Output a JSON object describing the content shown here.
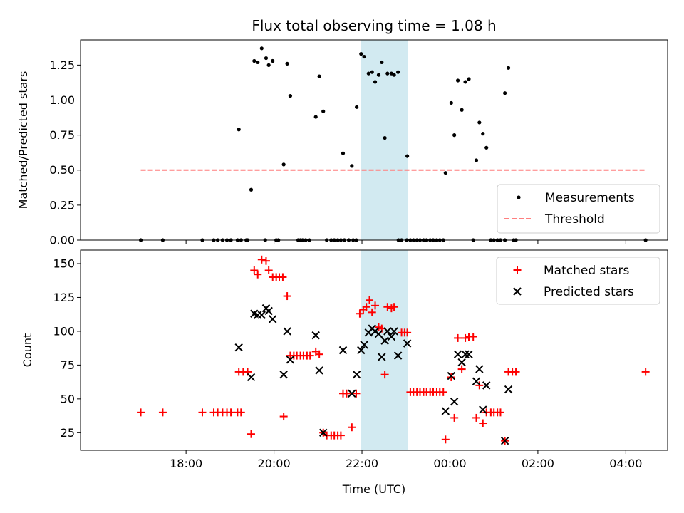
{
  "chart_data": [
    {
      "type": "scatter",
      "title": "Flux total observing time = 1.08 h",
      "xlabel": "",
      "ylabel": "Matched/Predicted stars",
      "x_unit": "hours UTC (relative to 00:00)",
      "xlim": [
        -8.4,
        4.95
      ],
      "ylim": [
        0.0,
        1.43
      ],
      "yticks": [
        0.0,
        0.25,
        0.5,
        0.75,
        1.0,
        1.25
      ],
      "ytick_labels": [
        "0.00",
        "0.25",
        "0.50",
        "0.75",
        "1.00",
        "1.25"
      ],
      "shaded_span": {
        "start": -2.02,
        "end": -0.95,
        "color": "#add8e6"
      },
      "legend_position": "lower-right",
      "series": [
        {
          "name": "Measurements",
          "color": "#000000",
          "marker": "dot",
          "points": [
            [
              -7.03,
              0.0
            ],
            [
              -6.53,
              0.0
            ],
            [
              -5.63,
              0.0
            ],
            [
              -5.37,
              0.0
            ],
            [
              -5.28,
              0.0
            ],
            [
              -5.17,
              0.0
            ],
            [
              -5.07,
              0.0
            ],
            [
              -4.98,
              0.0
            ],
            [
              -4.83,
              0.0
            ],
            [
              -4.75,
              0.0
            ],
            [
              -4.63,
              0.0
            ],
            [
              -4.6,
              0.0
            ],
            [
              -4.2,
              0.0
            ],
            [
              -3.95,
              0.0
            ],
            [
              -3.9,
              0.0
            ],
            [
              -3.45,
              0.0
            ],
            [
              -3.4,
              0.0
            ],
            [
              -3.35,
              0.0
            ],
            [
              -3.28,
              0.0
            ],
            [
              -3.2,
              0.0
            ],
            [
              -2.8,
              0.0
            ],
            [
              -2.7,
              0.0
            ],
            [
              -2.63,
              0.0
            ],
            [
              -2.55,
              0.0
            ],
            [
              -2.48,
              0.0
            ],
            [
              -2.4,
              0.0
            ],
            [
              -2.3,
              0.0
            ],
            [
              -2.2,
              0.0
            ],
            [
              -2.13,
              0.0
            ],
            [
              -1.17,
              0.0
            ],
            [
              -1.1,
              0.0
            ],
            [
              -0.98,
              0.0
            ],
            [
              -0.9,
              0.0
            ],
            [
              -0.83,
              0.0
            ],
            [
              -0.75,
              0.0
            ],
            [
              -0.68,
              0.0
            ],
            [
              -0.6,
              0.0
            ],
            [
              -0.53,
              0.0
            ],
            [
              -0.45,
              0.0
            ],
            [
              -0.38,
              0.0
            ],
            [
              -0.3,
              0.0
            ],
            [
              -0.23,
              0.0
            ],
            [
              -0.15,
              0.0
            ],
            [
              0.53,
              0.0
            ],
            [
              0.93,
              0.0
            ],
            [
              1.0,
              0.0
            ],
            [
              1.08,
              0.0
            ],
            [
              1.15,
              0.0
            ],
            [
              1.25,
              0.0
            ],
            [
              1.45,
              0.0
            ],
            [
              1.5,
              0.0
            ],
            [
              4.45,
              0.0
            ],
            [
              -4.8,
              0.79
            ],
            [
              -4.52,
              0.36
            ],
            [
              -4.45,
              1.28
            ],
            [
              -4.37,
              1.27
            ],
            [
              -4.28,
              1.37
            ],
            [
              -4.18,
              1.3
            ],
            [
              -4.12,
              1.25
            ],
            [
              -4.03,
              1.28
            ],
            [
              -3.78,
              0.54
            ],
            [
              -3.7,
              1.26
            ],
            [
              -3.63,
              1.03
            ],
            [
              -3.05,
              0.88
            ],
            [
              -2.97,
              1.17
            ],
            [
              -2.88,
              0.92
            ],
            [
              -2.43,
              0.62
            ],
            [
              -2.23,
              0.53
            ],
            [
              -2.12,
              0.95
            ],
            [
              -2.02,
              1.33
            ],
            [
              -1.95,
              1.31
            ],
            [
              -1.85,
              1.19
            ],
            [
              -1.77,
              1.2
            ],
            [
              -1.7,
              1.13
            ],
            [
              -1.62,
              1.18
            ],
            [
              -1.55,
              1.27
            ],
            [
              -1.48,
              0.73
            ],
            [
              -1.42,
              1.19
            ],
            [
              -1.33,
              1.19
            ],
            [
              -1.27,
              1.18
            ],
            [
              -1.18,
              1.2
            ],
            [
              -0.97,
              0.6
            ],
            [
              -0.1,
              0.48
            ],
            [
              0.03,
              0.98
            ],
            [
              0.1,
              0.75
            ],
            [
              0.18,
              1.14
            ],
            [
              0.27,
              0.93
            ],
            [
              0.35,
              1.13
            ],
            [
              0.43,
              1.15
            ],
            [
              0.6,
              0.57
            ],
            [
              0.67,
              0.84
            ],
            [
              0.75,
              0.76
            ],
            [
              0.83,
              0.66
            ],
            [
              1.25,
              1.05
            ],
            [
              1.33,
              1.23
            ]
          ]
        },
        {
          "name": "Threshold",
          "color": "#ff7f7f",
          "style": "dashed",
          "value": 0.5,
          "x_range": [
            -7.03,
            4.45
          ]
        }
      ]
    },
    {
      "type": "scatter",
      "title": "",
      "xlabel": "Time (UTC)",
      "ylabel": "Count",
      "x_unit": "hours UTC (relative to 00:00)",
      "xlim": [
        -8.4,
        4.95
      ],
      "ylim": [
        12,
        160
      ],
      "yticks": [
        25,
        50,
        75,
        100,
        125,
        150
      ],
      "ytick_labels": [
        "25",
        "50",
        "75",
        "100",
        "125",
        "150"
      ],
      "xticks": [
        -6,
        -4,
        -2,
        0,
        2,
        4
      ],
      "xtick_labels": [
        "18:00",
        "20:00",
        "22:00",
        "00:00",
        "02:00",
        "04:00"
      ],
      "shaded_span": {
        "start": -2.02,
        "end": -0.95,
        "color": "#add8e6"
      },
      "legend_position": "top-right",
      "series": [
        {
          "name": "Matched stars",
          "color": "#ff0000",
          "marker": "plus",
          "points": [
            [
              -7.03,
              40
            ],
            [
              -6.53,
              40
            ],
            [
              -5.63,
              40
            ],
            [
              -5.37,
              40
            ],
            [
              -5.28,
              40
            ],
            [
              -5.17,
              40
            ],
            [
              -5.07,
              40
            ],
            [
              -4.98,
              40
            ],
            [
              -4.83,
              40
            ],
            [
              -4.75,
              40
            ],
            [
              -4.8,
              70
            ],
            [
              -4.7,
              70
            ],
            [
              -4.6,
              70
            ],
            [
              -4.52,
              24
            ],
            [
              -4.45,
              145
            ],
            [
              -4.37,
              142
            ],
            [
              -4.28,
              153
            ],
            [
              -4.18,
              152
            ],
            [
              -4.12,
              145
            ],
            [
              -4.03,
              140
            ],
            [
              -3.95,
              140
            ],
            [
              -3.88,
              140
            ],
            [
              -3.8,
              140
            ],
            [
              -3.78,
              37
            ],
            [
              -3.7,
              126
            ],
            [
              -3.63,
              82
            ],
            [
              -3.55,
              82
            ],
            [
              -3.48,
              82
            ],
            [
              -3.4,
              82
            ],
            [
              -3.33,
              82
            ],
            [
              -3.25,
              82
            ],
            [
              -3.18,
              82
            ],
            [
              -3.05,
              85
            ],
            [
              -2.97,
              83
            ],
            [
              -2.88,
              25
            ],
            [
              -2.8,
              23
            ],
            [
              -2.7,
              23
            ],
            [
              -2.63,
              23
            ],
            [
              -2.55,
              23
            ],
            [
              -2.48,
              23
            ],
            [
              -2.43,
              54
            ],
            [
              -2.35,
              54
            ],
            [
              -2.23,
              29
            ],
            [
              -2.13,
              54
            ],
            [
              -2.05,
              113
            ],
            [
              -1.97,
              116
            ],
            [
              -1.9,
              118
            ],
            [
              -1.83,
              123
            ],
            [
              -1.77,
              114
            ],
            [
              -1.7,
              119
            ],
            [
              -1.62,
              103
            ],
            [
              -1.55,
              102
            ],
            [
              -1.48,
              68
            ],
            [
              -1.42,
              118
            ],
            [
              -1.33,
              117
            ],
            [
              -1.27,
              118
            ],
            [
              -1.1,
              99
            ],
            [
              -1.03,
              99
            ],
            [
              -0.97,
              99
            ],
            [
              -0.9,
              55
            ],
            [
              -0.83,
              55
            ],
            [
              -0.75,
              55
            ],
            [
              -0.68,
              55
            ],
            [
              -0.6,
              55
            ],
            [
              -0.53,
              55
            ],
            [
              -0.45,
              55
            ],
            [
              -0.38,
              55
            ],
            [
              -0.3,
              55
            ],
            [
              -0.23,
              55
            ],
            [
              -0.15,
              55
            ],
            [
              -0.1,
              20
            ],
            [
              0.03,
              66
            ],
            [
              0.1,
              36
            ],
            [
              0.18,
              95
            ],
            [
              0.27,
              72
            ],
            [
              0.35,
              95
            ],
            [
              0.43,
              96
            ],
            [
              0.53,
              96
            ],
            [
              0.6,
              36
            ],
            [
              0.67,
              60
            ],
            [
              0.75,
              32
            ],
            [
              0.83,
              40
            ],
            [
              0.93,
              40
            ],
            [
              1.0,
              40
            ],
            [
              1.08,
              40
            ],
            [
              1.15,
              40
            ],
            [
              1.25,
              19
            ],
            [
              1.33,
              70
            ],
            [
              1.42,
              70
            ],
            [
              1.5,
              70
            ],
            [
              4.45,
              70
            ]
          ]
        },
        {
          "name": "Predicted stars",
          "color": "#000000",
          "marker": "x",
          "points": [
            [
              -4.8,
              88
            ],
            [
              -4.52,
              66
            ],
            [
              -4.45,
              113
            ],
            [
              -4.37,
              112
            ],
            [
              -4.28,
              112
            ],
            [
              -4.18,
              117
            ],
            [
              -4.12,
              115
            ],
            [
              -4.03,
              109
            ],
            [
              -3.78,
              68
            ],
            [
              -3.7,
              100
            ],
            [
              -3.63,
              79
            ],
            [
              -3.05,
              97
            ],
            [
              -2.97,
              71
            ],
            [
              -2.88,
              25
            ],
            [
              -2.43,
              86
            ],
            [
              -2.23,
              54
            ],
            [
              -2.12,
              68
            ],
            [
              -2.02,
              86
            ],
            [
              -1.95,
              90
            ],
            [
              -1.85,
              99
            ],
            [
              -1.77,
              102
            ],
            [
              -1.7,
              100
            ],
            [
              -1.62,
              98
            ],
            [
              -1.55,
              81
            ],
            [
              -1.48,
              93
            ],
            [
              -1.42,
              100
            ],
            [
              -1.33,
              96
            ],
            [
              -1.27,
              100
            ],
            [
              -1.18,
              82
            ],
            [
              -0.97,
              91
            ],
            [
              -0.1,
              41
            ],
            [
              0.03,
              67
            ],
            [
              0.1,
              48
            ],
            [
              0.18,
              83
            ],
            [
              0.27,
              77
            ],
            [
              0.35,
              83
            ],
            [
              0.43,
              83
            ],
            [
              0.6,
              63
            ],
            [
              0.67,
              72
            ],
            [
              0.75,
              42
            ],
            [
              0.83,
              60
            ],
            [
              1.25,
              19
            ],
            [
              1.33,
              57
            ]
          ]
        }
      ]
    }
  ]
}
